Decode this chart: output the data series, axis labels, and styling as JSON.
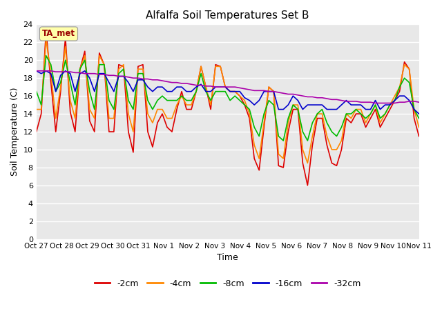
{
  "title": "Alfalfa Soil Temperatures Set B",
  "xlabel": "Time",
  "ylabel": "Soil Temperature (C)",
  "ylim": [
    0,
    24
  ],
  "yticks": [
    0,
    2,
    4,
    6,
    8,
    10,
    12,
    14,
    16,
    18,
    20,
    22,
    24
  ],
  "x_labels": [
    "Oct 27",
    "Oct 28",
    "Oct 29",
    "Oct 30",
    "Oct 31",
    "Nov 1",
    "Nov 2",
    "Nov 3",
    "Nov 4",
    "Nov 5",
    "Nov 6",
    "Nov 7",
    "Nov 8",
    "Nov 9",
    "Nov 10",
    "Nov 11"
  ],
  "colors": {
    "-2cm": "#dd0000",
    "-4cm": "#ff8800",
    "-8cm": "#00bb00",
    "-16cm": "#0000cc",
    "-32cm": "#aa00aa"
  },
  "background_color": "#e8e8e8",
  "plot_bg_color": "#e8e8e8",
  "fig_bg_color": "#ffffff",
  "ta_met_box_color": "#ffffaa",
  "ta_met_text_color": "#990000",
  "series": {
    "-2cm": [
      12.0,
      14.0,
      23.3,
      17.5,
      12.0,
      16.5,
      22.5,
      14.2,
      12.0,
      19.0,
      21.0,
      13.2,
      12.0,
      20.8,
      19.5,
      12.0,
      12.0,
      19.5,
      19.3,
      12.0,
      9.7,
      19.3,
      19.5,
      12.0,
      10.3,
      13.0,
      14.0,
      12.5,
      12.0,
      14.5,
      16.5,
      14.5,
      14.5,
      16.5,
      19.3,
      17.0,
      14.5,
      19.5,
      19.3,
      17.0,
      16.5,
      16.5,
      16.0,
      15.0,
      13.5,
      9.0,
      7.7,
      12.5,
      17.0,
      16.5,
      8.2,
      8.0,
      12.0,
      14.5,
      14.5,
      8.5,
      6.0,
      10.5,
      13.5,
      13.5,
      10.5,
      8.5,
      8.2,
      10.0,
      13.5,
      13.0,
      14.0,
      14.0,
      12.5,
      13.5,
      14.5,
      12.5,
      13.5,
      14.5,
      15.5,
      16.5,
      19.8,
      19.0,
      13.5,
      11.5
    ],
    "-4cm": [
      14.5,
      14.5,
      22.3,
      18.5,
      13.5,
      17.0,
      21.5,
      15.5,
      13.5,
      19.0,
      20.5,
      14.5,
      13.5,
      20.5,
      19.5,
      13.5,
      13.5,
      19.0,
      19.5,
      14.0,
      12.0,
      19.0,
      19.0,
      14.0,
      13.0,
      14.5,
      14.5,
      13.5,
      13.5,
      15.0,
      16.0,
      15.0,
      15.0,
      16.5,
      19.3,
      17.0,
      15.0,
      19.3,
      19.3,
      17.0,
      16.5,
      16.5,
      16.0,
      15.5,
      14.0,
      10.5,
      9.0,
      13.0,
      17.0,
      16.5,
      9.5,
      9.0,
      13.0,
      15.0,
      15.0,
      10.0,
      8.5,
      11.5,
      14.0,
      14.0,
      11.5,
      10.0,
      10.0,
      11.0,
      14.0,
      13.5,
      14.5,
      14.5,
      13.0,
      14.0,
      15.0,
      13.0,
      14.0,
      15.0,
      16.0,
      17.0,
      19.5,
      19.0,
      14.5,
      12.5
    ],
    "-8cm": [
      16.5,
      15.0,
      20.5,
      19.5,
      16.5,
      17.5,
      20.0,
      17.5,
      15.0,
      19.0,
      20.0,
      16.5,
      14.5,
      19.5,
      19.5,
      15.5,
      14.5,
      18.5,
      19.0,
      15.5,
      14.5,
      18.5,
      18.5,
      15.5,
      14.5,
      15.5,
      16.0,
      15.5,
      15.5,
      15.5,
      16.0,
      15.5,
      15.5,
      16.5,
      18.5,
      16.5,
      15.5,
      16.5,
      16.5,
      16.5,
      15.5,
      16.0,
      15.5,
      15.0,
      14.5,
      12.5,
      11.5,
      14.0,
      15.5,
      15.0,
      11.5,
      11.0,
      13.5,
      15.0,
      14.5,
      12.0,
      11.0,
      13.0,
      14.0,
      14.5,
      13.0,
      12.0,
      11.5,
      12.5,
      14.0,
      14.0,
      14.5,
      14.0,
      13.5,
      14.0,
      15.0,
      13.5,
      14.0,
      15.0,
      15.5,
      17.0,
      18.0,
      17.5,
      14.5,
      13.5
    ],
    "-16cm": [
      18.8,
      18.5,
      18.8,
      18.5,
      16.5,
      18.3,
      18.8,
      18.5,
      16.5,
      18.5,
      18.8,
      18.0,
      16.5,
      18.5,
      18.5,
      17.5,
      16.5,
      18.2,
      18.2,
      17.5,
      16.5,
      17.8,
      17.8,
      17.0,
      16.5,
      17.0,
      17.0,
      16.5,
      16.5,
      17.0,
      17.0,
      16.5,
      16.5,
      17.0,
      17.3,
      16.5,
      16.5,
      17.0,
      17.0,
      17.0,
      16.5,
      16.5,
      16.5,
      15.8,
      15.5,
      15.0,
      15.5,
      16.5,
      16.5,
      16.5,
      14.5,
      14.5,
      15.0,
      16.0,
      15.5,
      14.5,
      15.0,
      15.0,
      15.0,
      15.0,
      14.5,
      14.5,
      14.5,
      15.0,
      15.5,
      15.0,
      15.0,
      15.0,
      14.5,
      14.5,
      15.5,
      14.5,
      15.0,
      15.0,
      15.5,
      16.0,
      16.0,
      15.5,
      14.5,
      14.0
    ],
    "-32cm": [
      18.8,
      18.8,
      18.8,
      18.8,
      18.7,
      18.7,
      18.7,
      18.7,
      18.6,
      18.6,
      18.5,
      18.5,
      18.5,
      18.4,
      18.4,
      18.3,
      18.3,
      18.2,
      18.2,
      18.1,
      18.0,
      18.0,
      17.9,
      17.9,
      17.8,
      17.8,
      17.7,
      17.6,
      17.5,
      17.5,
      17.4,
      17.4,
      17.3,
      17.2,
      17.2,
      17.1,
      17.1,
      17.0,
      17.0,
      17.0,
      17.0,
      17.0,
      16.9,
      16.8,
      16.7,
      16.6,
      16.6,
      16.6,
      16.5,
      16.5,
      16.4,
      16.3,
      16.2,
      16.2,
      16.1,
      16.0,
      15.9,
      15.9,
      15.8,
      15.8,
      15.7,
      15.6,
      15.6,
      15.5,
      15.4,
      15.4,
      15.4,
      15.3,
      15.3,
      15.3,
      15.2,
      15.2,
      15.2,
      15.2,
      15.2,
      15.3,
      15.3,
      15.4,
      15.4,
      15.3
    ]
  }
}
